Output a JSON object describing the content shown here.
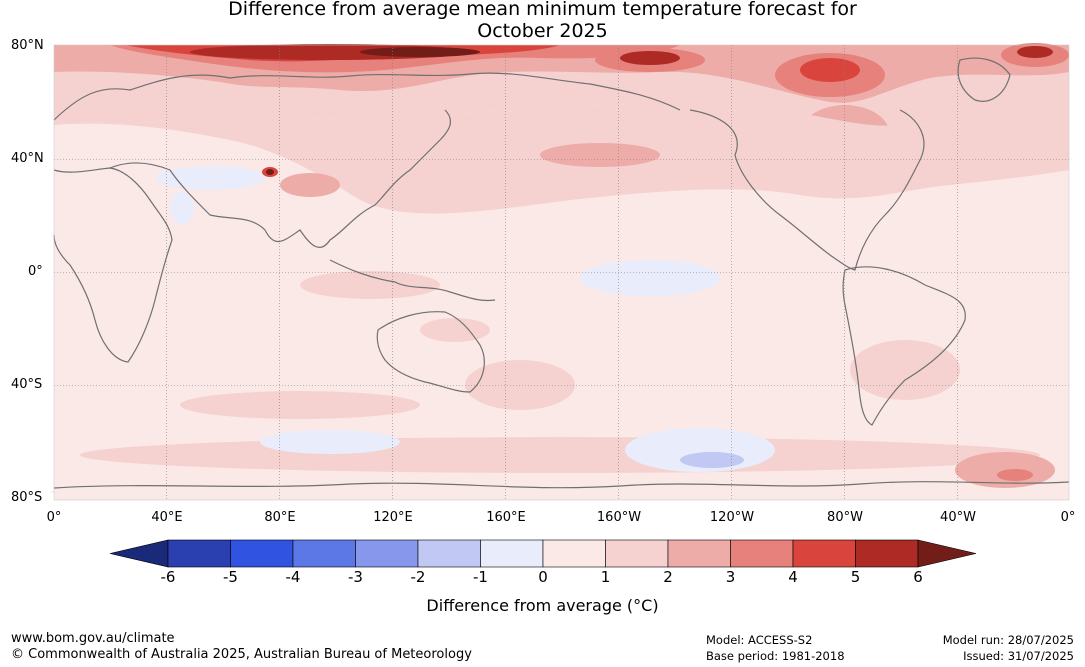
{
  "title": {
    "line1": "Difference from average mean minimum temperature forecast for",
    "line2": "October 2025"
  },
  "latitude_labels": [
    "80°N",
    "40°N",
    "0°",
    "40°S",
    "80°S"
  ],
  "longitude_labels": [
    "0°",
    "40°E",
    "80°E",
    "120°E",
    "160°E",
    "160°W",
    "120°W",
    "80°W",
    "40°W",
    "0°"
  ],
  "colorbar": {
    "ticks": [
      "-6",
      "-5",
      "-4",
      "-3",
      "-2",
      "-1",
      "0",
      "1",
      "2",
      "3",
      "4",
      "5",
      "6"
    ],
    "label": "Difference from average (°C)",
    "colors": {
      "lt_-6": "#1b2a78",
      "-6_-5": "#2a3fb0",
      "-5_-4": "#3153e2",
      "-4_-3": "#5c77e6",
      "-3_-2": "#8797ec",
      "-2_-1": "#c0c8f3",
      "-1_0": "#e9ecfb",
      "0_1": "#fbe9e8",
      "1_2": "#f5d2d0",
      "2_3": "#edaca8",
      "3_4": "#e6817b",
      "4_5": "#d9453d",
      "5_6": "#ad2a25",
      "gt_6": "#731d18"
    }
  },
  "map": {
    "projection": "plate-carree",
    "center_longitude": "180°",
    "coastline_color": "#707070",
    "gridline_color": "#808080"
  },
  "footer": {
    "website": "www.bom.gov.au/climate",
    "copyright": "© Commonwealth of Australia 2025, Australian Bureau of Meteorology",
    "model": "Model: ACCESS-S2",
    "base_period": "Base period: 1981-2018",
    "model_run": "Model run: 28/07/2025",
    "issued": "Issued: 31/07/2025"
  }
}
